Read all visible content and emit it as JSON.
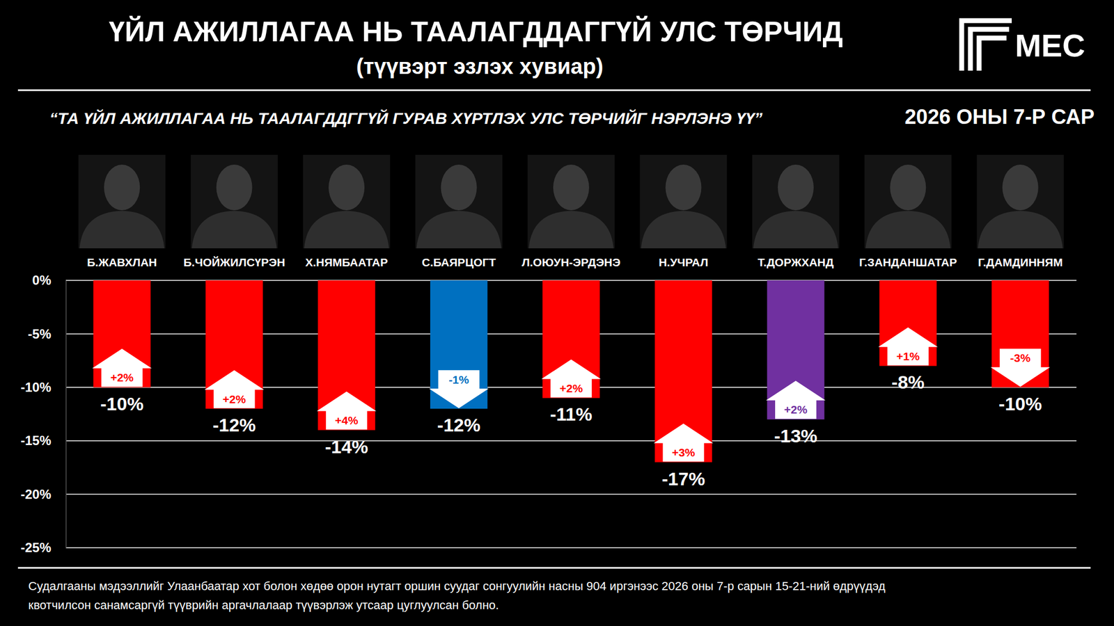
{
  "chart_data": {
    "type": "bar",
    "title": "ҮЙЛ АЖИЛЛАГАА НЬ ТААЛАГДДАГГҮЙ УЛС ТӨРЧИД",
    "subtitle": "(түүвэрт эзлэх хувиар)",
    "question": "“ТА ҮЙЛ АЖИЛЛАГАА НЬ ТААЛАГДДГГҮЙ ГУРАВ ХҮРТЛЭХ УЛС ТӨРЧИЙГ НЭРЛЭНЭ ҮҮ”",
    "date": "2026 ОНЫ 7-Р САР",
    "logo": "MEC",
    "categories": [
      "Б.ЖАВХЛАН",
      "Б.ЧОЙЖИЛСҮРЭН",
      "Х.НЯМБААТАР",
      "С.БАЯРЦОГТ",
      "Л.ОЮУН-ЭРДЭНЭ",
      "Н.УЧРАЛ",
      "Т.ДОРЖХАНД",
      "Г.ЗАНДАНШАТАР",
      "Г.ДАМДИННЯМ"
    ],
    "values": [
      -10,
      -12,
      -14,
      -12,
      -11,
      -17,
      -13,
      -8,
      -10
    ],
    "value_labels": [
      "-10%",
      "-12%",
      "-14%",
      "-12%",
      "-11%",
      "-17%",
      "-13%",
      "-8%",
      "-10%"
    ],
    "colors": [
      "#ff0000",
      "#ff0000",
      "#ff0000",
      "#0070c0",
      "#ff0000",
      "#ff0000",
      "#7030a0",
      "#ff0000",
      "#ff0000"
    ],
    "changes": [
      2,
      2,
      4,
      -1,
      2,
      3,
      2,
      1,
      -3
    ],
    "change_labels": [
      "+2%",
      "+2%",
      "+4%",
      "-1%",
      "+2%",
      "+3%",
      "+2%",
      "+1%",
      "-3%"
    ],
    "ylim": [
      -25,
      0
    ],
    "yticks": [
      {
        "value": 0,
        "label": "0%"
      },
      {
        "value": -5,
        "label": "-5%"
      },
      {
        "value": -10,
        "label": "-10%"
      },
      {
        "value": -15,
        "label": "-15%"
      },
      {
        "value": -20,
        "label": "-20%"
      },
      {
        "value": -25,
        "label": "-25%"
      }
    ],
    "grid": true,
    "data_labels": true,
    "source_note": [
      "Судалгааны мэдээллийг Улаанбаатар хот болон хөдөө орон нутагт оршин суудаг сонгуулийн насны 904 иргэнээс 2026 оны 7-р сарын 15-21-ний өдрүүдэд",
      "квотчилсон санамсаргүй түүврийн аргачлалаар түүвэрлэж утсаар цуглуулсан болно."
    ]
  }
}
